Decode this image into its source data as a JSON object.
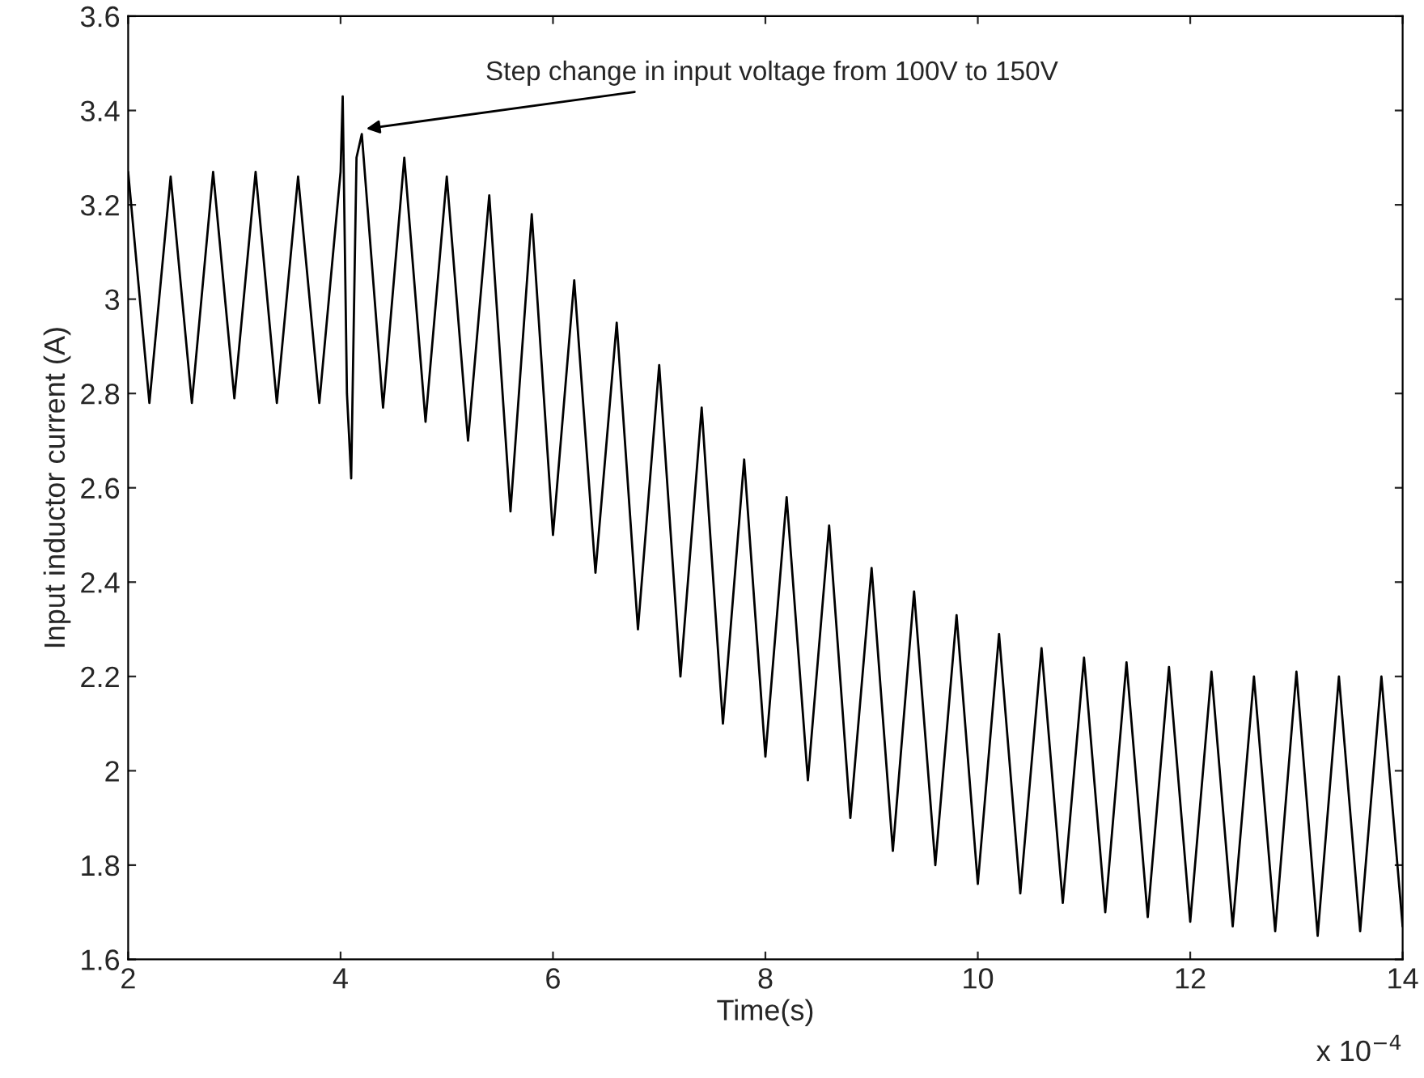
{
  "chart_data": {
    "type": "line",
    "xlabel": "Time(s)",
    "ylabel": "Input inductor current (A)",
    "xlim": [
      2,
      14
    ],
    "xticks": [
      2,
      4,
      6,
      8,
      10,
      12,
      14
    ],
    "ylim": [
      1.6,
      3.6
    ],
    "yticks": [
      1.6,
      1.8,
      2,
      2.2,
      2.4,
      2.6,
      2.8,
      3,
      3.2,
      3.4,
      3.6
    ],
    "grid": false,
    "legend": false,
    "marker": "none",
    "line_style": "solid",
    "annotations": [
      {
        "text": "Step change in input voltage from 100V to 150V",
        "x": 4.2,
        "y": 3.36
      },
      "x 10$^{−4}$"
    ],
    "series": [
      {
        "color": "#000000",
        "x": [
          2.0,
          2.2,
          2.4,
          2.6,
          2.8,
          3.0,
          3.2,
          3.4,
          3.6,
          3.8,
          4.0,
          4.02,
          4.06,
          4.1,
          4.15,
          4.2,
          4.4,
          4.6,
          4.8,
          5.0,
          5.2,
          5.4,
          5.6,
          5.8,
          6.0,
          6.2,
          6.4,
          6.6,
          6.8,
          7.0,
          7.2,
          7.4,
          7.6,
          7.8,
          8.0,
          8.2,
          8.4,
          8.6,
          8.8,
          9.0,
          9.2,
          9.4,
          9.6,
          9.8,
          10.0,
          10.2,
          10.4,
          10.6,
          10.8,
          11.0,
          11.2,
          11.4,
          11.6,
          11.8,
          12.0,
          12.2,
          12.4,
          12.6,
          12.8,
          13.0,
          13.2,
          13.4,
          13.6,
          13.8,
          14.0
        ],
        "values": [
          3.27,
          2.78,
          3.26,
          2.78,
          3.27,
          2.79,
          3.27,
          2.78,
          3.26,
          2.78,
          3.27,
          3.43,
          2.8,
          2.62,
          3.3,
          3.35,
          2.77,
          3.3,
          2.74,
          3.26,
          2.7,
          3.22,
          2.55,
          3.18,
          2.5,
          3.04,
          2.42,
          2.95,
          2.3,
          2.86,
          2.2,
          2.77,
          2.1,
          2.66,
          2.03,
          2.58,
          1.98,
          2.52,
          1.9,
          2.43,
          1.83,
          2.38,
          1.8,
          2.33,
          1.76,
          2.29,
          1.74,
          2.26,
          1.72,
          2.24,
          1.7,
          2.23,
          1.69,
          2.22,
          1.68,
          2.21,
          1.67,
          2.2,
          1.66,
          2.21,
          1.65,
          2.2,
          1.66,
          2.2,
          1.67
        ]
      }
    ]
  }
}
